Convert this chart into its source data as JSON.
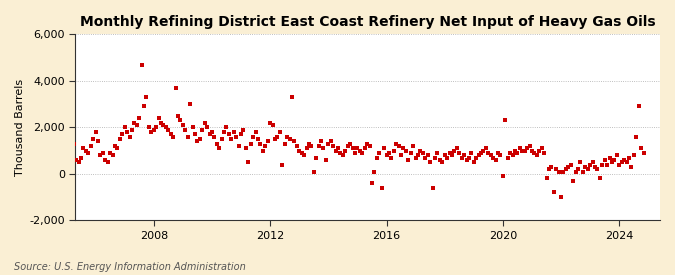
{
  "title": "Monthly Refining District East Coast Refinery Net Input of Heavy Gas Oils",
  "ylabel": "Thousand Barrels",
  "source": "Source: U.S. Energy Information Administration",
  "ylim": [
    -2000,
    6000
  ],
  "yticks": [
    -2000,
    0,
    2000,
    4000,
    6000
  ],
  "ytick_labels": [
    "-2,000",
    "0",
    "2,000",
    "4,000",
    "6,000"
  ],
  "xlim_start": 2005.3,
  "xlim_end": 2025.4,
  "xtick_years": [
    2008,
    2012,
    2016,
    2020,
    2024
  ],
  "fig_background_color": "#faefd4",
  "plot_bg_color": "#ffffff",
  "marker_color": "#cc0000",
  "marker": "s",
  "marker_size": 2.5,
  "grid_color": "#aaaaaa",
  "grid_linestyle": ":",
  "title_fontsize": 10,
  "label_fontsize": 8,
  "tick_fontsize": 8,
  "source_fontsize": 7,
  "data": [
    [
      2005.0,
      800
    ],
    [
      2005.083,
      1100
    ],
    [
      2005.167,
      900
    ],
    [
      2005.25,
      1300
    ],
    [
      2005.333,
      600
    ],
    [
      2005.417,
      500
    ],
    [
      2005.5,
      700
    ],
    [
      2005.583,
      1100
    ],
    [
      2005.667,
      1000
    ],
    [
      2005.75,
      900
    ],
    [
      2005.833,
      1200
    ],
    [
      2005.917,
      1500
    ],
    [
      2006.0,
      1800
    ],
    [
      2006.083,
      1400
    ],
    [
      2006.167,
      800
    ],
    [
      2006.25,
      900
    ],
    [
      2006.333,
      600
    ],
    [
      2006.417,
      500
    ],
    [
      2006.5,
      900
    ],
    [
      2006.583,
      800
    ],
    [
      2006.667,
      1200
    ],
    [
      2006.75,
      1100
    ],
    [
      2006.833,
      1500
    ],
    [
      2006.917,
      1700
    ],
    [
      2007.0,
      2000
    ],
    [
      2007.083,
      1800
    ],
    [
      2007.167,
      1600
    ],
    [
      2007.25,
      1900
    ],
    [
      2007.333,
      2200
    ],
    [
      2007.417,
      2100
    ],
    [
      2007.5,
      2400
    ],
    [
      2007.583,
      4700
    ],
    [
      2007.667,
      2900
    ],
    [
      2007.75,
      3300
    ],
    [
      2007.833,
      2000
    ],
    [
      2007.917,
      1800
    ],
    [
      2008.0,
      1900
    ],
    [
      2008.083,
      2000
    ],
    [
      2008.167,
      2400
    ],
    [
      2008.25,
      2200
    ],
    [
      2008.333,
      2100
    ],
    [
      2008.417,
      2000
    ],
    [
      2008.5,
      1900
    ],
    [
      2008.583,
      1700
    ],
    [
      2008.667,
      1600
    ],
    [
      2008.75,
      3700
    ],
    [
      2008.833,
      2500
    ],
    [
      2008.917,
      2300
    ],
    [
      2009.0,
      2100
    ],
    [
      2009.083,
      1900
    ],
    [
      2009.167,
      1600
    ],
    [
      2009.25,
      3000
    ],
    [
      2009.333,
      2000
    ],
    [
      2009.417,
      1700
    ],
    [
      2009.5,
      1400
    ],
    [
      2009.583,
      1500
    ],
    [
      2009.667,
      1900
    ],
    [
      2009.75,
      2200
    ],
    [
      2009.833,
      2000
    ],
    [
      2009.917,
      1700
    ],
    [
      2010.0,
      1800
    ],
    [
      2010.083,
      1600
    ],
    [
      2010.167,
      1300
    ],
    [
      2010.25,
      1100
    ],
    [
      2010.333,
      1500
    ],
    [
      2010.417,
      1800
    ],
    [
      2010.5,
      2000
    ],
    [
      2010.583,
      1700
    ],
    [
      2010.667,
      1500
    ],
    [
      2010.75,
      1800
    ],
    [
      2010.833,
      1600
    ],
    [
      2010.917,
      1200
    ],
    [
      2011.0,
      1700
    ],
    [
      2011.083,
      1900
    ],
    [
      2011.167,
      1100
    ],
    [
      2011.25,
      500
    ],
    [
      2011.333,
      1300
    ],
    [
      2011.417,
      1600
    ],
    [
      2011.5,
      1800
    ],
    [
      2011.583,
      1500
    ],
    [
      2011.667,
      1300
    ],
    [
      2011.75,
      1000
    ],
    [
      2011.833,
      1200
    ],
    [
      2011.917,
      1400
    ],
    [
      2012.0,
      2200
    ],
    [
      2012.083,
      2100
    ],
    [
      2012.167,
      1500
    ],
    [
      2012.25,
      1600
    ],
    [
      2012.333,
      1800
    ],
    [
      2012.417,
      400
    ],
    [
      2012.5,
      1300
    ],
    [
      2012.583,
      1600
    ],
    [
      2012.667,
      1500
    ],
    [
      2012.75,
      3300
    ],
    [
      2012.833,
      1400
    ],
    [
      2012.917,
      1200
    ],
    [
      2013.0,
      1000
    ],
    [
      2013.083,
      900
    ],
    [
      2013.167,
      800
    ],
    [
      2013.25,
      1100
    ],
    [
      2013.333,
      1300
    ],
    [
      2013.417,
      1200
    ],
    [
      2013.5,
      100
    ],
    [
      2013.583,
      700
    ],
    [
      2013.667,
      1200
    ],
    [
      2013.75,
      1400
    ],
    [
      2013.833,
      1100
    ],
    [
      2013.917,
      600
    ],
    [
      2014.0,
      1300
    ],
    [
      2014.083,
      1400
    ],
    [
      2014.167,
      1200
    ],
    [
      2014.25,
      1000
    ],
    [
      2014.333,
      1100
    ],
    [
      2014.417,
      900
    ],
    [
      2014.5,
      800
    ],
    [
      2014.583,
      1000
    ],
    [
      2014.667,
      1200
    ],
    [
      2014.75,
      1300
    ],
    [
      2014.833,
      1100
    ],
    [
      2014.917,
      900
    ],
    [
      2015.0,
      1100
    ],
    [
      2015.083,
      1000
    ],
    [
      2015.167,
      900
    ],
    [
      2015.25,
      1100
    ],
    [
      2015.333,
      1300
    ],
    [
      2015.417,
      1200
    ],
    [
      2015.5,
      -400
    ],
    [
      2015.583,
      100
    ],
    [
      2015.667,
      700
    ],
    [
      2015.75,
      900
    ],
    [
      2015.833,
      -600
    ],
    [
      2015.917,
      1100
    ],
    [
      2016.0,
      800
    ],
    [
      2016.083,
      900
    ],
    [
      2016.167,
      700
    ],
    [
      2016.25,
      1000
    ],
    [
      2016.333,
      1300
    ],
    [
      2016.417,
      1200
    ],
    [
      2016.5,
      800
    ],
    [
      2016.583,
      1100
    ],
    [
      2016.667,
      1000
    ],
    [
      2016.75,
      600
    ],
    [
      2016.833,
      900
    ],
    [
      2016.917,
      1200
    ],
    [
      2017.0,
      700
    ],
    [
      2017.083,
      800
    ],
    [
      2017.167,
      1000
    ],
    [
      2017.25,
      900
    ],
    [
      2017.333,
      700
    ],
    [
      2017.417,
      800
    ],
    [
      2017.5,
      500
    ],
    [
      2017.583,
      -600
    ],
    [
      2017.667,
      700
    ],
    [
      2017.75,
      900
    ],
    [
      2017.833,
      600
    ],
    [
      2017.917,
      500
    ],
    [
      2018.0,
      800
    ],
    [
      2018.083,
      700
    ],
    [
      2018.167,
      900
    ],
    [
      2018.25,
      800
    ],
    [
      2018.333,
      1000
    ],
    [
      2018.417,
      1100
    ],
    [
      2018.5,
      900
    ],
    [
      2018.583,
      700
    ],
    [
      2018.667,
      800
    ],
    [
      2018.75,
      600
    ],
    [
      2018.833,
      700
    ],
    [
      2018.917,
      900
    ],
    [
      2019.0,
      500
    ],
    [
      2019.083,
      700
    ],
    [
      2019.167,
      800
    ],
    [
      2019.25,
      900
    ],
    [
      2019.333,
      1000
    ],
    [
      2019.417,
      1100
    ],
    [
      2019.5,
      900
    ],
    [
      2019.583,
      800
    ],
    [
      2019.667,
      700
    ],
    [
      2019.75,
      600
    ],
    [
      2019.833,
      900
    ],
    [
      2019.917,
      800
    ],
    [
      2020.0,
      -100
    ],
    [
      2020.083,
      2300
    ],
    [
      2020.167,
      700
    ],
    [
      2020.25,
      900
    ],
    [
      2020.333,
      800
    ],
    [
      2020.417,
      1000
    ],
    [
      2020.5,
      900
    ],
    [
      2020.583,
      1100
    ],
    [
      2020.667,
      1000
    ],
    [
      2020.75,
      1000
    ],
    [
      2020.833,
      1100
    ],
    [
      2020.917,
      1200
    ],
    [
      2021.0,
      1000
    ],
    [
      2021.083,
      900
    ],
    [
      2021.167,
      800
    ],
    [
      2021.25,
      1000
    ],
    [
      2021.333,
      1100
    ],
    [
      2021.417,
      900
    ],
    [
      2021.5,
      -200
    ],
    [
      2021.583,
      200
    ],
    [
      2021.667,
      300
    ],
    [
      2021.75,
      -800
    ],
    [
      2021.833,
      200
    ],
    [
      2021.917,
      100
    ],
    [
      2022.0,
      -1000
    ],
    [
      2022.083,
      100
    ],
    [
      2022.167,
      200
    ],
    [
      2022.25,
      300
    ],
    [
      2022.333,
      400
    ],
    [
      2022.417,
      -300
    ],
    [
      2022.5,
      100
    ],
    [
      2022.583,
      200
    ],
    [
      2022.667,
      500
    ],
    [
      2022.75,
      100
    ],
    [
      2022.833,
      300
    ],
    [
      2022.917,
      200
    ],
    [
      2023.0,
      400
    ],
    [
      2023.083,
      500
    ],
    [
      2023.167,
      300
    ],
    [
      2023.25,
      200
    ],
    [
      2023.333,
      -200
    ],
    [
      2023.417,
      400
    ],
    [
      2023.5,
      600
    ],
    [
      2023.583,
      400
    ],
    [
      2023.667,
      700
    ],
    [
      2023.75,
      500
    ],
    [
      2023.833,
      600
    ],
    [
      2023.917,
      800
    ],
    [
      2024.0,
      400
    ],
    [
      2024.083,
      500
    ],
    [
      2024.167,
      600
    ],
    [
      2024.25,
      500
    ],
    [
      2024.333,
      700
    ],
    [
      2024.417,
      300
    ],
    [
      2024.5,
      800
    ],
    [
      2024.583,
      1600
    ],
    [
      2024.667,
      2900
    ],
    [
      2024.75,
      1100
    ],
    [
      2024.833,
      900
    ]
  ]
}
